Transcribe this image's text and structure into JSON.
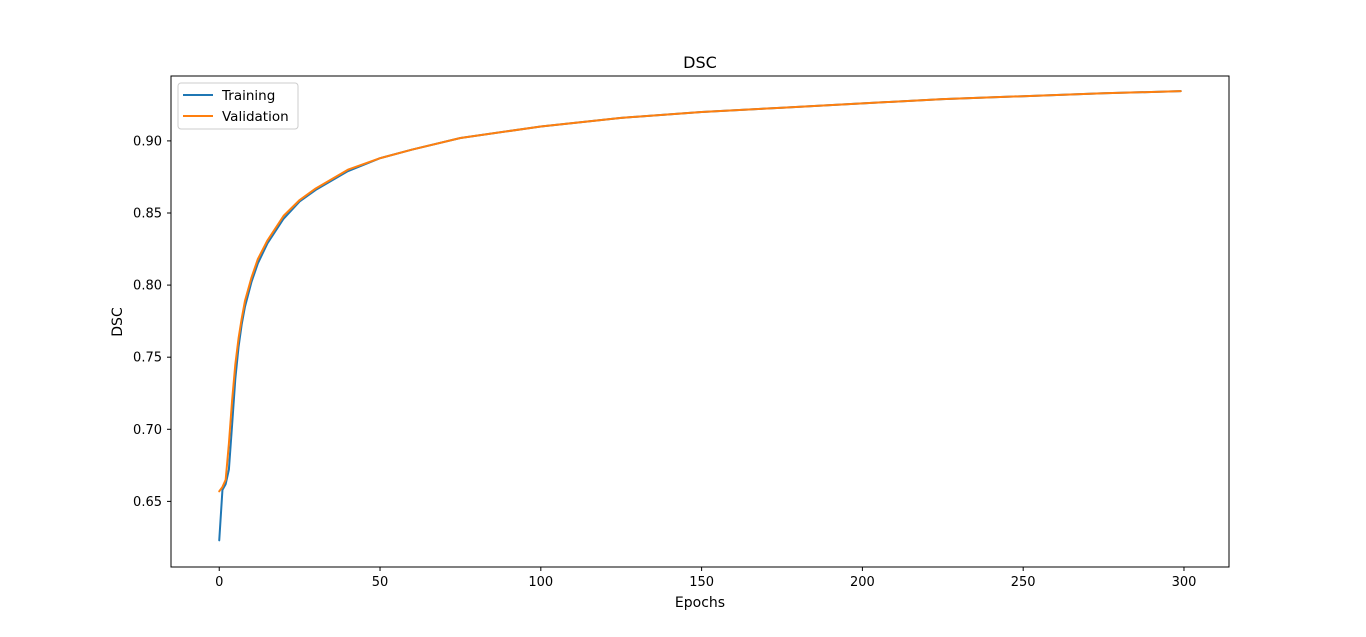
{
  "chart_data": {
    "type": "line",
    "title": "DSC",
    "xlabel": "Epochs",
    "ylabel": "DSC",
    "xlim": [
      -15,
      314
    ],
    "ylim": [
      0.6045,
      0.945
    ],
    "xticks": [
      0,
      50,
      100,
      150,
      200,
      250,
      300
    ],
    "xtick_labels": [
      "0",
      "50",
      "100",
      "150",
      "200",
      "250",
      "300"
    ],
    "yticks": [
      0.65,
      0.7,
      0.75,
      0.8,
      0.85,
      0.9
    ],
    "ytick_labels": [
      "0.65",
      "0.70",
      "0.75",
      "0.80",
      "0.85",
      "0.90"
    ],
    "grid": false,
    "legend_position": "top-left",
    "series": [
      {
        "name": "Training",
        "color": "#1f77b4",
        "x": [
          0,
          1,
          2,
          3,
          4,
          5,
          6,
          7,
          8,
          10,
          12,
          15,
          20,
          25,
          30,
          40,
          50,
          60,
          75,
          100,
          125,
          150,
          175,
          200,
          225,
          250,
          275,
          299
        ],
        "y": [
          0.623,
          0.658,
          0.662,
          0.672,
          0.703,
          0.735,
          0.757,
          0.773,
          0.785,
          0.802,
          0.815,
          0.829,
          0.846,
          0.858,
          0.866,
          0.879,
          0.888,
          0.894,
          0.902,
          0.91,
          0.916,
          0.92,
          0.923,
          0.926,
          0.929,
          0.931,
          0.933,
          0.9345
        ]
      },
      {
        "name": "Validation",
        "color": "#ff7f0e",
        "x": [
          0,
          1,
          2,
          3,
          4,
          5,
          6,
          7,
          8,
          10,
          12,
          15,
          20,
          25,
          30,
          40,
          50,
          60,
          75,
          100,
          125,
          150,
          175,
          200,
          225,
          250,
          275,
          299
        ],
        "y": [
          0.657,
          0.66,
          0.665,
          0.69,
          0.72,
          0.745,
          0.763,
          0.777,
          0.789,
          0.805,
          0.818,
          0.831,
          0.848,
          0.859,
          0.867,
          0.88,
          0.888,
          0.894,
          0.902,
          0.91,
          0.916,
          0.92,
          0.923,
          0.926,
          0.929,
          0.931,
          0.933,
          0.9345
        ]
      }
    ]
  }
}
